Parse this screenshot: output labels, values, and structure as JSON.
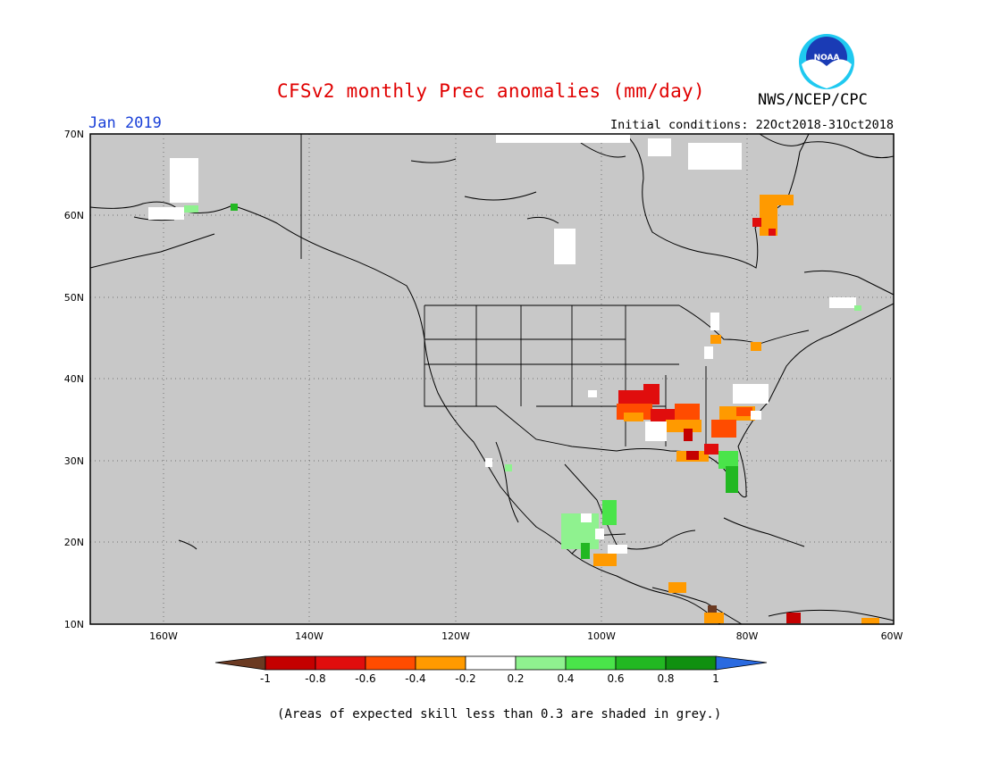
{
  "title": "CFSv2 monthly Prec anomalies (mm/day)",
  "org": "NWS/NCEP/CPC",
  "logo": {
    "text": "NOAA",
    "name": "noaa-logo"
  },
  "month": "Jan 2019",
  "initial_conditions": "Initial conditions: 22Oct2018-31Oct2018",
  "footnote": "(Areas of expected skill less than 0.3 are shaded in grey.)",
  "map": {
    "lat_labels": [
      "70N",
      "60N",
      "50N",
      "40N",
      "30N",
      "20N",
      "10N"
    ],
    "lon_labels": [
      "160W",
      "140W",
      "120W",
      "100W",
      "80W",
      "60W"
    ],
    "lat_range": [
      10,
      70
    ],
    "lon_range": [
      -170,
      -60
    ],
    "background": "#c8c8c8"
  },
  "legend": {
    "labels": [
      "-1",
      "-0.8",
      "-0.6",
      "-0.4",
      "-0.2",
      "0.2",
      "0.4",
      "0.6",
      "0.8",
      "1"
    ],
    "colors": [
      "#6b3a22",
      "#c40000",
      "#e00d0d",
      "#ff4c00",
      "#ff9a00",
      "#ffffff",
      "#8ff28f",
      "#4ae44a",
      "#22b822",
      "#109010",
      "#2a6ae0"
    ]
  }
}
